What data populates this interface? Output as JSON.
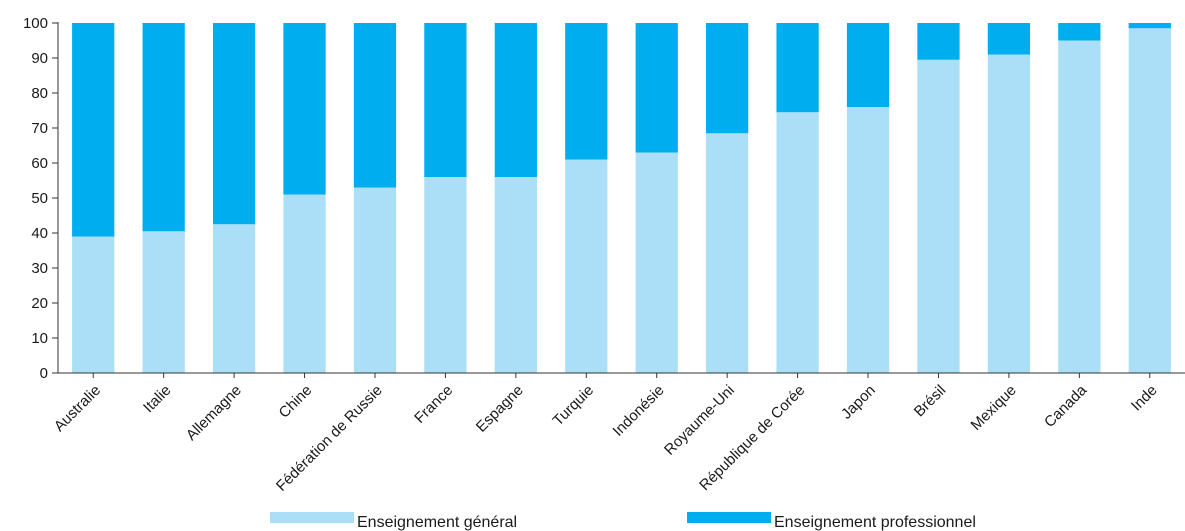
{
  "chart_data": {
    "type": "bar",
    "stacked": true,
    "categories": [
      "Australie",
      "Italie",
      "Allemagne",
      "Chine",
      "Fédération de Russie",
      "France",
      "Espagne",
      "Turquie",
      "Indonésie",
      "Royaume-Uni",
      "République de Corée",
      "Japon",
      "Brésil",
      "Mexique",
      "Canada",
      "Inde"
    ],
    "series": [
      {
        "name": "Enseignement général",
        "color": "#aadff7",
        "values": [
          39,
          40.5,
          42.5,
          51,
          53,
          56,
          56,
          61,
          63,
          68.5,
          74.5,
          76,
          89.5,
          91,
          95,
          98.5
        ]
      },
      {
        "name": "Enseignement professionnel",
        "color": "#00aeef",
        "values": [
          61,
          59.5,
          57.5,
          49,
          47,
          44,
          44,
          39,
          37,
          31.5,
          25.5,
          24,
          10.5,
          9,
          5,
          1.5
        ]
      }
    ],
    "ylim": [
      0,
      100
    ],
    "yticks": [
      0,
      10,
      20,
      30,
      40,
      50,
      60,
      70,
      80,
      90,
      100
    ],
    "grid": false,
    "legend_position": "bottom"
  }
}
